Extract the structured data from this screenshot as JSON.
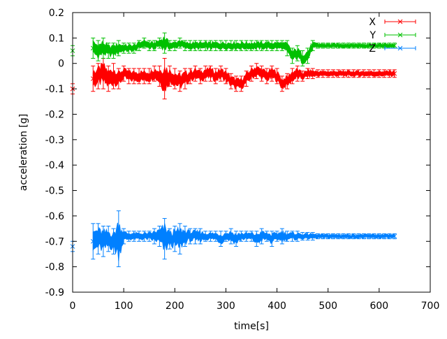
{
  "chart_data": {
    "type": "line",
    "title": "",
    "xlabel": "time[s]",
    "ylabel": "acceleration [g]",
    "xlim": [
      0,
      700
    ],
    "ylim": [
      -0.9,
      0.2
    ],
    "xticks": [
      0,
      100,
      200,
      300,
      400,
      500,
      600,
      700
    ],
    "yticks": [
      0.2,
      0.1,
      0,
      -0.1,
      -0.2,
      -0.3,
      -0.4,
      -0.5,
      -0.6,
      -0.7,
      -0.8,
      -0.9
    ],
    "grid": false,
    "legend": "top-right",
    "x": [
      0,
      40,
      50,
      60,
      70,
      80,
      90,
      100,
      110,
      120,
      130,
      140,
      150,
      160,
      170,
      180,
      190,
      200,
      210,
      220,
      230,
      240,
      250,
      260,
      270,
      280,
      290,
      300,
      310,
      320,
      330,
      340,
      350,
      360,
      370,
      380,
      390,
      400,
      410,
      420,
      430,
      440,
      450,
      460,
      470,
      480,
      490,
      500,
      510,
      520,
      530,
      540,
      550,
      560,
      570,
      580,
      590,
      600,
      610,
      620,
      630
    ],
    "series": [
      {
        "name": "X",
        "color": "#ff0000",
        "marker": "plus",
        "values": [
          -0.1,
          -0.06,
          -0.05,
          -0.04,
          -0.06,
          -0.05,
          -0.06,
          -0.04,
          -0.05,
          -0.05,
          -0.05,
          -0.05,
          -0.05,
          -0.04,
          -0.05,
          -0.06,
          -0.05,
          -0.06,
          -0.07,
          -0.06,
          -0.05,
          -0.04,
          -0.05,
          -0.04,
          -0.04,
          -0.05,
          -0.04,
          -0.05,
          -0.07,
          -0.08,
          -0.08,
          -0.06,
          -0.04,
          -0.03,
          -0.04,
          -0.05,
          -0.04,
          -0.05,
          -0.08,
          -0.07,
          -0.05,
          -0.04,
          -0.05,
          -0.04,
          -0.04,
          -0.04,
          -0.04,
          -0.04,
          -0.04,
          -0.04,
          -0.04,
          -0.04,
          -0.04,
          -0.04,
          -0.04,
          -0.04,
          -0.04,
          -0.04,
          -0.04,
          -0.04,
          -0.04
        ],
        "errors": [
          0.02,
          0.05,
          0.05,
          0.06,
          0.05,
          0.05,
          0.04,
          0.03,
          0.03,
          0.03,
          0.03,
          0.03,
          0.03,
          0.03,
          0.04,
          0.08,
          0.04,
          0.04,
          0.04,
          0.04,
          0.03,
          0.03,
          0.03,
          0.03,
          0.03,
          0.03,
          0.03,
          0.03,
          0.03,
          0.03,
          0.03,
          0.03,
          0.03,
          0.03,
          0.03,
          0.03,
          0.03,
          0.03,
          0.03,
          0.03,
          0.03,
          0.03,
          0.02,
          0.02,
          0.02,
          0.015,
          0.015,
          0.015,
          0.015,
          0.015,
          0.015,
          0.015,
          0.015,
          0.015,
          0.015,
          0.015,
          0.015,
          0.015,
          0.015,
          0.015,
          0.015
        ]
      },
      {
        "name": "Y",
        "color": "#00c000",
        "marker": "cross",
        "values": [
          0.05,
          0.06,
          0.05,
          0.06,
          0.05,
          0.05,
          0.06,
          0.06,
          0.06,
          0.06,
          0.07,
          0.08,
          0.07,
          0.07,
          0.08,
          0.08,
          0.07,
          0.07,
          0.08,
          0.07,
          0.07,
          0.07,
          0.07,
          0.07,
          0.07,
          0.07,
          0.07,
          0.07,
          0.07,
          0.07,
          0.07,
          0.07,
          0.07,
          0.07,
          0.07,
          0.07,
          0.07,
          0.07,
          0.07,
          0.06,
          0.03,
          0.04,
          0.02,
          0.03,
          0.07,
          0.07,
          0.07,
          0.07,
          0.07,
          0.07,
          0.07,
          0.07,
          0.07,
          0.07,
          0.07,
          0.07,
          0.07,
          0.07,
          0.07,
          0.07,
          0.07
        ],
        "errors": [
          0.02,
          0.04,
          0.04,
          0.04,
          0.03,
          0.03,
          0.03,
          0.02,
          0.02,
          0.02,
          0.02,
          0.02,
          0.02,
          0.02,
          0.02,
          0.04,
          0.02,
          0.02,
          0.02,
          0.02,
          0.02,
          0.02,
          0.02,
          0.02,
          0.02,
          0.02,
          0.02,
          0.02,
          0.02,
          0.02,
          0.02,
          0.02,
          0.02,
          0.02,
          0.02,
          0.02,
          0.02,
          0.02,
          0.02,
          0.03,
          0.03,
          0.03,
          0.03,
          0.03,
          0.02,
          0.01,
          0.01,
          0.01,
          0.01,
          0.01,
          0.01,
          0.01,
          0.01,
          0.01,
          0.01,
          0.01,
          0.01,
          0.01,
          0.01,
          0.01,
          0.01
        ]
      },
      {
        "name": "Z",
        "color": "#0080ff",
        "marker": "star",
        "values": [
          -0.72,
          -0.7,
          -0.69,
          -0.7,
          -0.69,
          -0.7,
          -0.69,
          -0.68,
          -0.68,
          -0.68,
          -0.68,
          -0.68,
          -0.68,
          -0.68,
          -0.68,
          -0.69,
          -0.69,
          -0.69,
          -0.69,
          -0.68,
          -0.68,
          -0.68,
          -0.68,
          -0.68,
          -0.68,
          -0.68,
          -0.69,
          -0.68,
          -0.68,
          -0.69,
          -0.68,
          -0.68,
          -0.68,
          -0.69,
          -0.68,
          -0.68,
          -0.69,
          -0.68,
          -0.68,
          -0.68,
          -0.68,
          -0.68,
          -0.68,
          -0.68,
          -0.68,
          -0.68,
          -0.68,
          -0.68,
          -0.68,
          -0.68,
          -0.68,
          -0.68,
          -0.68,
          -0.68,
          -0.68,
          -0.68,
          -0.68,
          -0.68,
          -0.68,
          -0.68,
          -0.68
        ],
        "errors": [
          0.02,
          0.07,
          0.06,
          0.06,
          0.05,
          0.05,
          0.11,
          0.03,
          0.02,
          0.02,
          0.02,
          0.02,
          0.02,
          0.03,
          0.04,
          0.08,
          0.04,
          0.05,
          0.06,
          0.04,
          0.03,
          0.03,
          0.03,
          0.02,
          0.02,
          0.02,
          0.03,
          0.02,
          0.03,
          0.03,
          0.02,
          0.02,
          0.02,
          0.03,
          0.03,
          0.02,
          0.03,
          0.02,
          0.03,
          0.02,
          0.02,
          0.02,
          0.015,
          0.015,
          0.015,
          0.01,
          0.01,
          0.01,
          0.01,
          0.01,
          0.01,
          0.01,
          0.01,
          0.01,
          0.01,
          0.01,
          0.01,
          0.01,
          0.01,
          0.01,
          0.01
        ]
      }
    ]
  }
}
